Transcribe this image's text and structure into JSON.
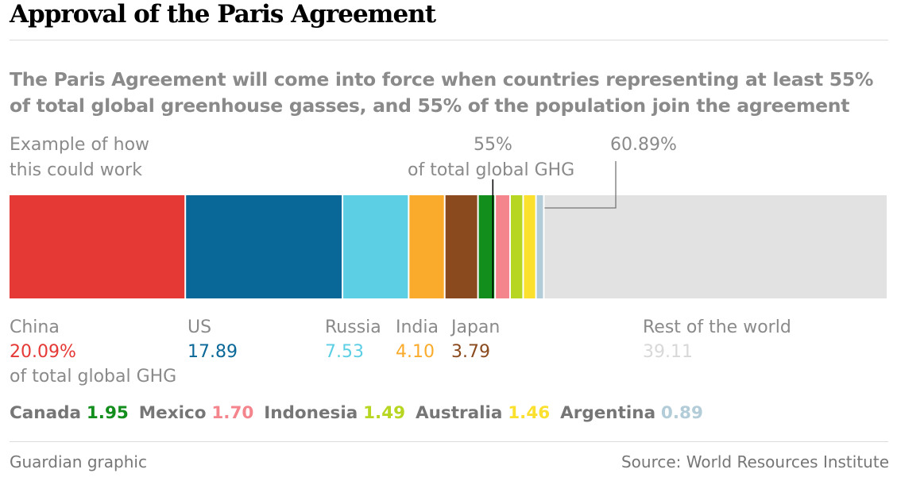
{
  "header": {
    "title": "Approval of the Paris Agreement",
    "subtitle": "The Paris Agreement will come into force when countries representing at least 55% of total global greenhouse gasses, and 55% of the population join the agreement"
  },
  "example_label": "Example of how this could work",
  "threshold": {
    "value": 55,
    "label_value": "55%",
    "label_text": "of total global GHG"
  },
  "cumulative": {
    "value": 60.89,
    "label": "60.89%"
  },
  "unit_note": "of total global GHG",
  "chart_data": {
    "type": "bar",
    "orientation": "horizontal-stacked",
    "axis_max": 100,
    "segments": [
      {
        "name": "China",
        "value": 20.09,
        "label": "20.09%",
        "color": "#e53935"
      },
      {
        "name": "US",
        "value": 17.89,
        "label": "17.89",
        "color": "#0a6898"
      },
      {
        "name": "Russia",
        "value": 7.53,
        "label": "7.53",
        "color": "#5ccfe5"
      },
      {
        "name": "India",
        "value": 4.1,
        "label": "4.10",
        "color": "#fbab2b"
      },
      {
        "name": "Japan",
        "value": 3.79,
        "label": "3.79",
        "color": "#8b4a1e"
      },
      {
        "name": "Canada",
        "value": 1.95,
        "label": "1.95",
        "color": "#128e1c"
      },
      {
        "name": "Mexico",
        "value": 1.7,
        "label": "1.70",
        "color": "#f4858d"
      },
      {
        "name": "Indonesia",
        "value": 1.49,
        "label": "1.49",
        "color": "#b7d621"
      },
      {
        "name": "Australia",
        "value": 1.46,
        "label": "1.46",
        "color": "#fbe12e"
      },
      {
        "name": "Argentina",
        "value": 0.89,
        "label": "0.89",
        "color": "#b2ccd8"
      },
      {
        "name": "Rest of the world",
        "value": 39.11,
        "label": "39.11",
        "color": "#e2e2e2"
      }
    ]
  },
  "footer": {
    "left": "Guardian graphic",
    "right": "Source: World Resources Institute"
  }
}
